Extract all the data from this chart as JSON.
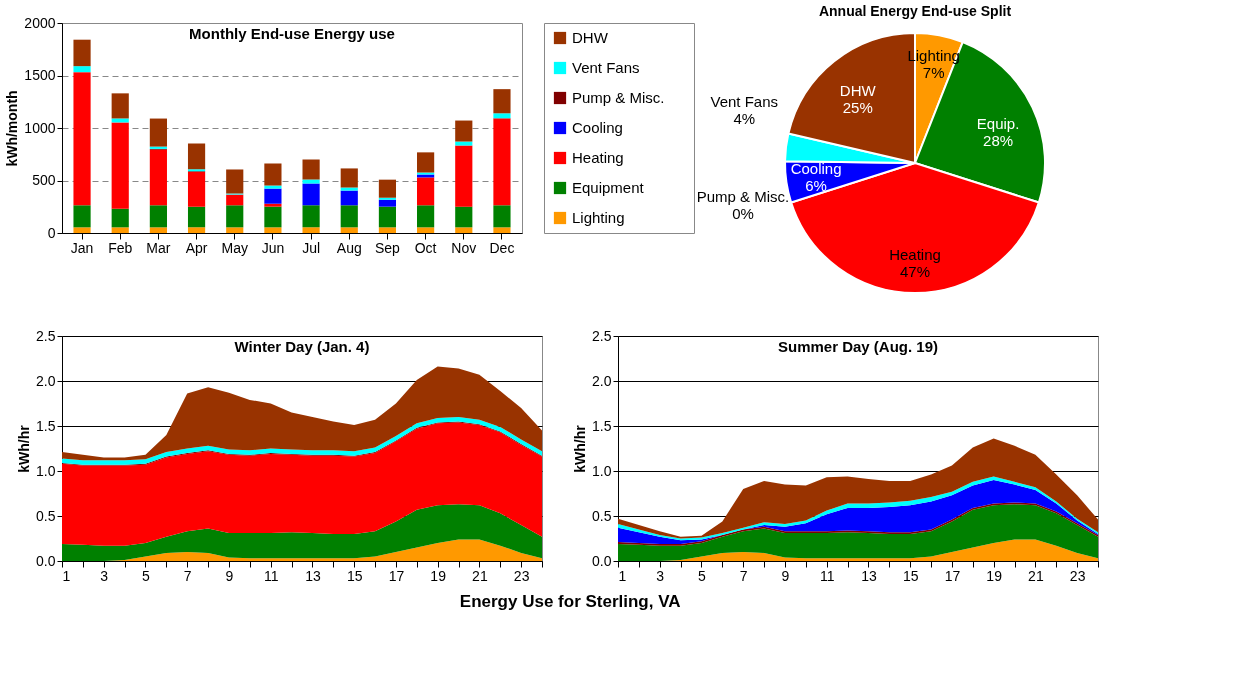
{
  "chart_data": [
    {
      "type": "bar",
      "title": "Monthly End-use Energy use",
      "ylabel": "kWh/month",
      "stacked": true,
      "legend": "right",
      "grid": "y",
      "categories": [
        "Jan",
        "Feb",
        "Mar",
        "Apr",
        "May",
        "Jun",
        "Jul",
        "Aug",
        "Sep",
        "Oct",
        "Nov",
        "Dec"
      ],
      "ylim": [
        0,
        2000
      ],
      "yticks": [
        0,
        500,
        1000,
        1500,
        2000
      ],
      "series": [
        {
          "name": "Lighting",
          "color": "#ff9900",
          "values": [
            54,
            54,
            54,
            54,
            54,
            54,
            54,
            54,
            54,
            54,
            54,
            54
          ]
        },
        {
          "name": "Equipment",
          "color": "#008000",
          "values": [
            210,
            177,
            210,
            197,
            210,
            197,
            210,
            210,
            197,
            210,
            197,
            210
          ]
        },
        {
          "name": "Heating",
          "color": "#ff0000",
          "values": [
            1268,
            822,
            529,
            331,
            102,
            28,
            0,
            0,
            0,
            265,
            582,
            828
          ]
        },
        {
          "name": "Cooling",
          "color": "#0000ff",
          "values": [
            0,
            0,
            0,
            0,
            0,
            144,
            208,
            140,
            66,
            28,
            0,
            0
          ]
        },
        {
          "name": "Pump & Misc.",
          "color": "#800000",
          "values": [
            0,
            0,
            8,
            5,
            0,
            0,
            0,
            0,
            0,
            0,
            0,
            0
          ]
        },
        {
          "name": "Vent Fans",
          "color": "#00ffff",
          "values": [
            57,
            38,
            22,
            19,
            10,
            29,
            38,
            29,
            19,
            19,
            38,
            48
          ]
        },
        {
          "name": "DHW",
          "color": "#993300",
          "values": [
            252,
            239,
            267,
            246,
            229,
            210,
            191,
            182,
            172,
            192,
            200,
            230
          ]
        }
      ]
    },
    {
      "type": "pie",
      "title": "Annual Energy End-use Split",
      "categories": [
        "Lighting",
        "Equip.",
        "Heating",
        "Cooling",
        "Pump & Misc.",
        "Vent Fans",
        "DHW"
      ],
      "values": [
        7,
        28,
        47,
        6,
        0,
        4,
        25
      ],
      "value_labels": [
        "7%",
        "28%",
        "47%",
        "6%",
        "0%",
        "4%",
        "25%"
      ],
      "colors": [
        "#ff9900",
        "#008000",
        "#ff0000",
        "#0000ff",
        "#800000",
        "#00ffff",
        "#993300"
      ]
    },
    {
      "type": "area",
      "title": "Winter Day (Jan. 4)",
      "ylabel": "kWh/hr",
      "stacked": true,
      "grid": "y",
      "x": [
        1,
        2,
        3,
        4,
        5,
        6,
        7,
        8,
        9,
        10,
        11,
        12,
        13,
        14,
        15,
        16,
        17,
        18,
        19,
        20,
        21,
        22,
        23,
        24
      ],
      "xlim": [
        1,
        24
      ],
      "xticks": [
        1,
        {
          "value": 2,
          "label": null
        },
        3,
        {
          "value": 4,
          "label": null
        },
        5,
        {
          "value": 6,
          "label": null
        },
        7,
        {
          "value": 8,
          "label": null
        },
        9,
        {
          "value": 10,
          "label": null
        },
        11,
        {
          "value": 12,
          "label": null
        },
        13,
        {
          "value": 14,
          "label": null
        },
        15,
        {
          "value": 16,
          "label": null
        },
        17,
        {
          "value": 18,
          "label": null
        },
        19,
        {
          "value": 20,
          "label": null
        },
        21,
        {
          "value": 22,
          "label": null
        },
        23,
        {
          "value": 24,
          "label": null
        }
      ],
      "ylim": [
        0,
        2.5
      ],
      "yticks": [
        {
          "value": 0,
          "label": "0.0"
        },
        0.5,
        {
          "value": 1,
          "label": "1.0"
        },
        1.5,
        {
          "value": 2,
          "label": "2.0"
        },
        2.5
      ],
      "series": [
        {
          "color": "#ff9900",
          "values": [
            0,
            0,
            0,
            0.01,
            0.05,
            0.09,
            0.1,
            0.09,
            0.04,
            0.03,
            0.03,
            0.03,
            0.03,
            0.03,
            0.03,
            0.05,
            0.1,
            0.15,
            0.2,
            0.24,
            0.24,
            0.17,
            0.09,
            0.03
          ]
        },
        {
          "color": "#008000",
          "values": [
            0.19,
            0.18,
            0.17,
            0.16,
            0.15,
            0.18,
            0.23,
            0.27,
            0.27,
            0.28,
            0.28,
            0.29,
            0.28,
            0.27,
            0.27,
            0.28,
            0.34,
            0.42,
            0.42,
            0.39,
            0.38,
            0.36,
            0.31,
            0.24
          ]
        },
        {
          "color": "#ff0000",
          "values": [
            0.89,
            0.88,
            0.89,
            0.89,
            0.87,
            0.88,
            0.86,
            0.86,
            0.87,
            0.86,
            0.88,
            0.86,
            0.86,
            0.87,
            0.86,
            0.87,
            0.89,
            0.9,
            0.91,
            0.91,
            0.89,
            0.9,
            0.89,
            0.89
          ]
        },
        {
          "color": "#800000",
          "values": [
            0.01,
            0.01,
            0.01,
            0.01,
            0.01,
            0.01,
            0.01,
            0.01,
            0.01,
            0.01,
            0.01,
            0.01,
            0.01,
            0.01,
            0.01,
            0.01,
            0.01,
            0.01,
            0.01,
            0.01,
            0.01,
            0.01,
            0.01,
            0.01
          ]
        },
        {
          "color": "#00ffff",
          "values": [
            0.05,
            0.05,
            0.05,
            0.05,
            0.05,
            0.05,
            0.05,
            0.05,
            0.05,
            0.05,
            0.05,
            0.05,
            0.05,
            0.05,
            0.05,
            0.05,
            0.05,
            0.05,
            0.05,
            0.05,
            0.05,
            0.05,
            0.05,
            0.05
          ]
        },
        {
          "color": "#993300",
          "values": [
            0.07,
            0.06,
            0.03,
            0.03,
            0.05,
            0.19,
            0.61,
            0.65,
            0.63,
            0.56,
            0.5,
            0.41,
            0.37,
            0.32,
            0.29,
            0.31,
            0.36,
            0.48,
            0.57,
            0.54,
            0.5,
            0.4,
            0.35,
            0.23
          ]
        }
      ]
    },
    {
      "type": "area",
      "title": "Summer Day (Aug. 19)",
      "ylabel": "kWh/hr",
      "stacked": true,
      "grid": "y",
      "annotations": [
        "Energy Use for Sterling, VA"
      ],
      "x": [
        1,
        2,
        3,
        4,
        5,
        6,
        7,
        8,
        9,
        10,
        11,
        12,
        13,
        14,
        15,
        16,
        17,
        18,
        19,
        20,
        21,
        22,
        23,
        24
      ],
      "xlim": [
        1,
        24
      ],
      "xticks": [
        1,
        {
          "value": 2,
          "label": null
        },
        3,
        {
          "value": 4,
          "label": null
        },
        5,
        {
          "value": 6,
          "label": null
        },
        7,
        {
          "value": 8,
          "label": null
        },
        9,
        {
          "value": 10,
          "label": null
        },
        11,
        {
          "value": 12,
          "label": null
        },
        13,
        {
          "value": 14,
          "label": null
        },
        15,
        {
          "value": 16,
          "label": null
        },
        17,
        {
          "value": 18,
          "label": null
        },
        19,
        {
          "value": 20,
          "label": null
        },
        21,
        {
          "value": 22,
          "label": null
        },
        23,
        {
          "value": 24,
          "label": null
        }
      ],
      "ylim": [
        0,
        2.5
      ],
      "yticks": [
        {
          "value": 0,
          "label": "0.0"
        },
        0.5,
        {
          "value": 1,
          "label": "1.0"
        },
        1.5,
        {
          "value": 2,
          "label": "2.0"
        },
        2.5
      ],
      "series": [
        {
          "color": "#ff9900",
          "values": [
            0,
            0,
            0,
            0.01,
            0.05,
            0.09,
            0.1,
            0.09,
            0.04,
            0.03,
            0.03,
            0.03,
            0.03,
            0.03,
            0.03,
            0.05,
            0.1,
            0.15,
            0.2,
            0.24,
            0.24,
            0.17,
            0.09,
            0.03
          ]
        },
        {
          "color": "#008000",
          "values": [
            0.19,
            0.18,
            0.17,
            0.16,
            0.15,
            0.18,
            0.23,
            0.27,
            0.27,
            0.28,
            0.28,
            0.29,
            0.28,
            0.27,
            0.27,
            0.28,
            0.34,
            0.42,
            0.42,
            0.39,
            0.38,
            0.36,
            0.31,
            0.24
          ]
        },
        {
          "color": "#800000",
          "values": [
            0.02,
            0.02,
            0.02,
            0.02,
            0.02,
            0.02,
            0.02,
            0.02,
            0.02,
            0.02,
            0.02,
            0.02,
            0.02,
            0.02,
            0.02,
            0.02,
            0.02,
            0.02,
            0.02,
            0.02,
            0.02,
            0.02,
            0.02,
            0.02
          ]
        },
        {
          "color": "#0000ff",
          "values": [
            0.16,
            0.12,
            0.08,
            0.04,
            0.02,
            0,
            0,
            0.02,
            0.05,
            0.09,
            0.19,
            0.25,
            0.26,
            0.28,
            0.3,
            0.31,
            0.27,
            0.25,
            0.26,
            0.2,
            0.15,
            0.09,
            0.03,
            0.01
          ]
        },
        {
          "color": "#00ffff",
          "values": [
            0.04,
            0.03,
            0.02,
            0.02,
            0.02,
            0.02,
            0.02,
            0.03,
            0.03,
            0.03,
            0.04,
            0.05,
            0.05,
            0.05,
            0.05,
            0.05,
            0.04,
            0.04,
            0.04,
            0.03,
            0.03,
            0.02,
            0.02,
            0.02
          ]
        },
        {
          "color": "#993300",
          "values": [
            0.06,
            0.05,
            0.04,
            0.02,
            0.02,
            0.13,
            0.43,
            0.46,
            0.44,
            0.39,
            0.37,
            0.3,
            0.27,
            0.24,
            0.22,
            0.25,
            0.29,
            0.38,
            0.42,
            0.4,
            0.36,
            0.3,
            0.26,
            0.14
          ]
        }
      ]
    }
  ]
}
